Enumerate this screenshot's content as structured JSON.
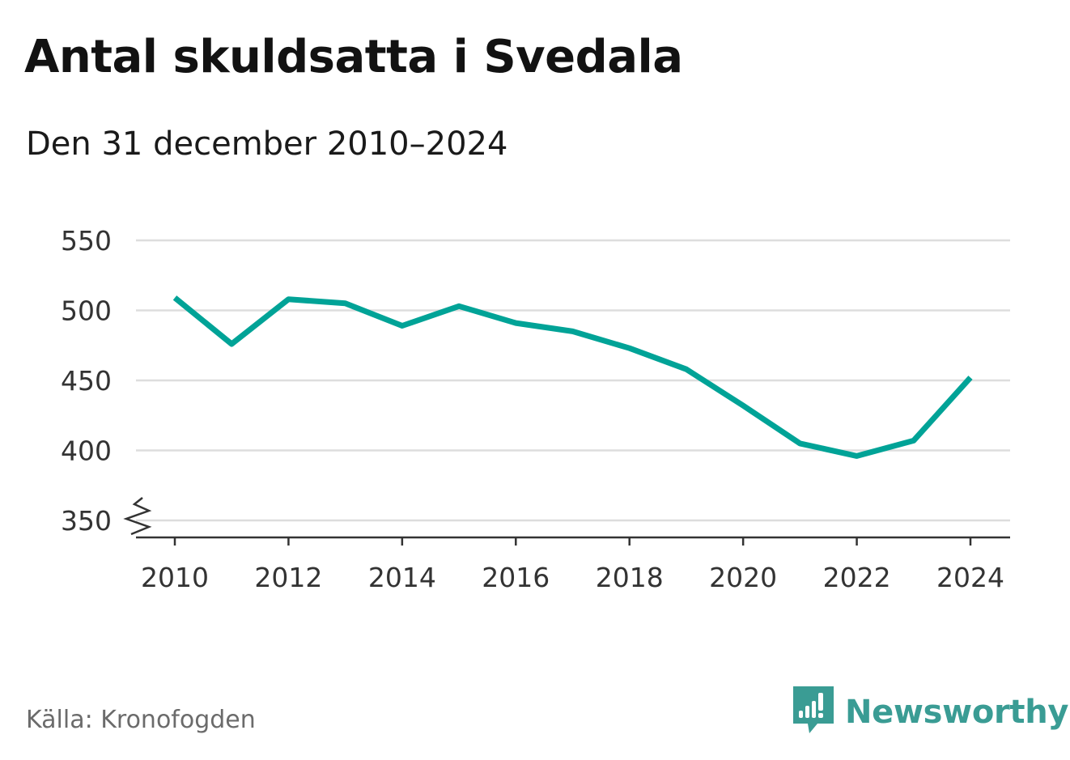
{
  "header": {
    "title": "Antal skuldsatta i Svedala",
    "subtitle": "Den 31 december 2010–2024"
  },
  "footer": {
    "source": "Källa: Kronofogden",
    "brand": "Newsworthy"
  },
  "colors": {
    "line": "#00a397",
    "grid": "#dddddd",
    "axis": "#333333",
    "brand": "#3a9c94"
  },
  "icons": {
    "brand": "newsworthy-logo-icon",
    "axis_break": "axis-break-icon"
  },
  "chart_data": {
    "type": "line",
    "title": "Antal skuldsatta i Svedala",
    "subtitle": "Den 31 december 2010–2024",
    "xlabel": "",
    "ylabel": "",
    "x": [
      2010,
      2011,
      2012,
      2013,
      2014,
      2015,
      2016,
      2017,
      2018,
      2019,
      2020,
      2021,
      2022,
      2023,
      2024
    ],
    "series": [
      {
        "values": [
          509,
          476,
          508,
          505,
          489,
          503,
          491,
          485,
          473,
          458,
          432,
          405,
          396,
          407,
          452
        ]
      }
    ],
    "yticks": [
      350,
      400,
      450,
      500,
      550
    ],
    "xticks": [
      2010,
      2012,
      2014,
      2016,
      2018,
      2020,
      2022,
      2024
    ],
    "ylim": [
      350,
      550
    ],
    "xlim": [
      2010,
      2024
    ],
    "y_axis_break": true,
    "grid": true,
    "legend": "none"
  }
}
